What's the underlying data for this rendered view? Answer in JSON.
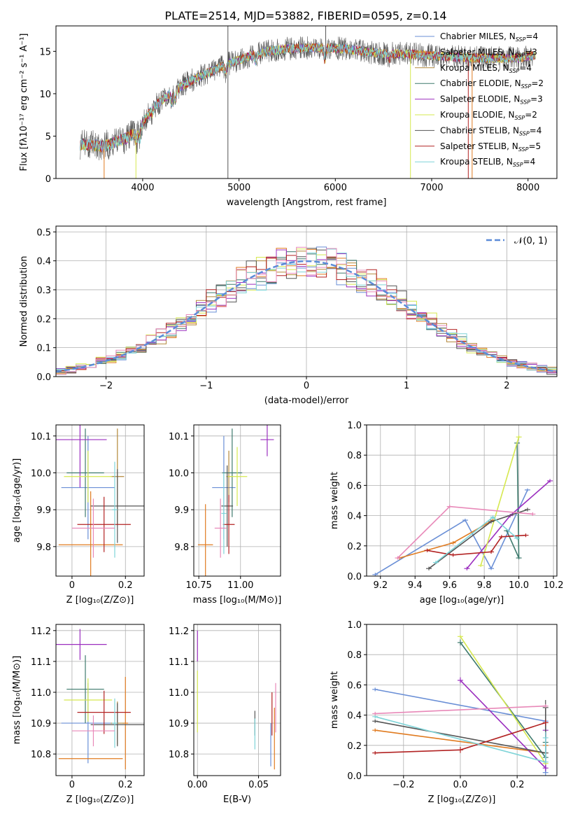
{
  "figure": {
    "title": "PLATE=2514, MJD=53882, FIBERID=0595, z=0.14"
  },
  "colors": {
    "series": [
      "#6a8fd6",
      "#e07b20",
      "#b3883a",
      "#3e7a6d",
      "#9b2fbf",
      "#d6e84f",
      "#555555",
      "#b22222",
      "#7fd4d8"
    ],
    "pink": "#e888b8",
    "grid": "#b0b0b0",
    "axis": "#000000"
  },
  "series_labels": [
    {
      "imf": "Chabrier",
      "lib": "MILES",
      "n": "4"
    },
    {
      "imf": "Salpeter",
      "lib": "MILES",
      "n": "3"
    },
    {
      "imf": "Kroupa",
      "lib": "MILES",
      "n": "4"
    },
    {
      "imf": "Chabrier",
      "lib": "ELODIE",
      "n": "2"
    },
    {
      "imf": "Salpeter",
      "lib": "ELODIE",
      "n": "3"
    },
    {
      "imf": "Kroupa",
      "lib": "ELODIE",
      "n": "2"
    },
    {
      "imf": "Chabrier",
      "lib": "STELIB",
      "n": "4"
    },
    {
      "imf": "Salpeter",
      "lib": "STELIB",
      "n": "5"
    },
    {
      "imf": "Kroupa",
      "lib": "STELIB",
      "n": "4"
    }
  ],
  "chart_data": [
    {
      "id": "spectrum",
      "type": "line",
      "xlabel": "wavelength [Angstrom, rest frame]",
      "ylabel": "Flux [fλ10⁻¹⁷ erg cm⁻² s⁻¹ A⁻¹]",
      "xlim": [
        3100,
        8300
      ],
      "ylim": [
        0,
        18
      ],
      "xticks": [
        4000,
        5000,
        6000,
        7000,
        8000
      ],
      "yticks": [
        0,
        5,
        10,
        15
      ],
      "grid": false,
      "legend": "right",
      "continuum": {
        "x": [
          3350,
          3600,
          3800,
          3950,
          4100,
          4300,
          4500,
          4700,
          4900,
          5100,
          5300,
          5500,
          5700,
          5900,
          6100,
          6300,
          6500,
          6700,
          6900,
          7100,
          7300,
          7500,
          7700,
          7900,
          8050
        ],
        "y": [
          4.0,
          3.8,
          4.6,
          5.6,
          8.3,
          10.2,
          11.5,
          12.6,
          13.6,
          14.4,
          15.0,
          15.3,
          15.4,
          15.4,
          15.3,
          15.0,
          14.7,
          14.7,
          14.6,
          14.4,
          14.3,
          14.2,
          14.2,
          14.2,
          14.5
        ]
      },
      "features": [
        {
          "x": 3934,
          "y": 4.4
        },
        {
          "x": 3969,
          "y": 4.6
        },
        {
          "x": 4102,
          "y": 7.6
        },
        {
          "x": 4304,
          "y": 8.9
        },
        {
          "x": 4340,
          "y": 9.2
        },
        {
          "x": 4861,
          "y": 12.5
        },
        {
          "x": 5175,
          "y": 13.6
        },
        {
          "x": 5890,
          "y": 14.0
        },
        {
          "x": 6563,
          "y": 14.1
        }
      ],
      "spikes": [
        {
          "x": 4885,
          "y0": 0,
          "y1": 18,
          "series": 6
        },
        {
          "x": 3930,
          "y0": 0,
          "y1": 5,
          "series": 5
        },
        {
          "x": 3600,
          "y0": 0,
          "y1": 3.5,
          "series": 1
        },
        {
          "x": 6780,
          "y0": 0,
          "y1": 14.5,
          "series": 5
        },
        {
          "x": 7420,
          "y0": 0,
          "y1": 14.3,
          "series": 1
        },
        {
          "x": 7380,
          "y0": 0,
          "y1": 14.0,
          "series": 7
        },
        {
          "x": 5900,
          "y0": 14.0,
          "y1": 18,
          "series": 6
        }
      ]
    },
    {
      "id": "residuals",
      "type": "bar",
      "xlabel": "(data-model)/error",
      "ylabel": "Normed distribution",
      "xlim": [
        -2.5,
        2.5
      ],
      "ylim": [
        0,
        0.52
      ],
      "xticks": [
        -2,
        -1,
        0,
        1,
        2
      ],
      "yticks": [
        0.0,
        0.1,
        0.2,
        0.3,
        0.4,
        0.5
      ],
      "grid": true,
      "bin_edges_range": [
        -2.5,
        2.5
      ],
      "nbins": 50,
      "gaussian_label": "𝒩(0, 1)",
      "legend": "top-right"
    },
    {
      "id": "age_vs_Z",
      "type": "scatter",
      "xlabel": "Z [log₁₀(Z/Z⊙)]",
      "ylabel": "age  [log₁₀(age/yr)]",
      "xlim": [
        -0.06,
        0.27
      ],
      "ylim": [
        9.72,
        10.13
      ],
      "xticks": [
        0.0,
        0.2
      ],
      "yticks": [
        9.8,
        9.9,
        10.0,
        10.1
      ],
      "grid": true,
      "points": [
        {
          "x": 0.06,
          "xerr": 0.1,
          "y": 9.96,
          "yerr": 0.14,
          "series": 0
        },
        {
          "x": 0.07,
          "xerr": 0.12,
          "y": 9.805,
          "yerr": 0.145,
          "series": 1
        },
        {
          "x": 0.17,
          "xerr": 0.025,
          "y": 9.99,
          "yerr": 0.13,
          "series": 2
        },
        {
          "x": 0.05,
          "xerr": 0.07,
          "y": 10.0,
          "yerr": 0.12,
          "series": 3
        },
        {
          "x": 0.03,
          "xerr": 0.1,
          "y": 10.09,
          "yerr": 0.13,
          "series": 4
        },
        {
          "x": 0.06,
          "xerr": 0.09,
          "y": 9.99,
          "yerr": 0.07,
          "series": 5
        },
        {
          "x": 0.17,
          "xerr": 0.1,
          "y": 9.91,
          "yerr": 0.1,
          "series": 6
        },
        {
          "x": 0.12,
          "xerr": 0.1,
          "y": 9.86,
          "yerr": 0.075,
          "series": 7
        },
        {
          "x": 0.16,
          "xerr": 0.01,
          "y": 9.9,
          "yerr": 0.13,
          "series": 8
        },
        {
          "x": 0.08,
          "xerr": 0.08,
          "y": 9.85,
          "yerr": 0.08,
          "series": 9
        }
      ]
    },
    {
      "id": "age_vs_mass",
      "type": "scatter",
      "xlabel": "mass [log₁₀(M/M⊙)]",
      "ylabel": "",
      "xlim": [
        10.72,
        11.24
      ],
      "ylim": [
        9.72,
        10.13
      ],
      "xticks": [
        10.75,
        11.0
      ],
      "yticks": [
        9.8,
        9.9,
        10.0,
        10.1
      ],
      "grid": true,
      "points": [
        {
          "x": 10.9,
          "xerr": 0.07,
          "y": 9.96,
          "yerr": 0.14,
          "series": 0
        },
        {
          "x": 10.79,
          "xerr": 0.045,
          "y": 9.805,
          "yerr": 0.11,
          "series": 1
        },
        {
          "x": 10.93,
          "xerr": 0.015,
          "y": 9.99,
          "yerr": 0.07,
          "series": 2
        },
        {
          "x": 10.95,
          "xerr": 0.06,
          "y": 10.0,
          "yerr": 0.12,
          "series": 3
        },
        {
          "x": 11.16,
          "xerr": 0.04,
          "y": 10.09,
          "yerr": 0.045,
          "series": 4
        },
        {
          "x": 10.98,
          "xerr": 0.06,
          "y": 9.99,
          "yerr": 0.08,
          "series": 5
        },
        {
          "x": 10.92,
          "xerr": 0.035,
          "y": 9.91,
          "yerr": 0.11,
          "series": 6
        },
        {
          "x": 10.93,
          "xerr": 0.035,
          "y": 9.86,
          "yerr": 0.08,
          "series": 7
        },
        {
          "x": 10.9,
          "xerr": 0.015,
          "y": 9.89,
          "yerr": 0.11,
          "series": 8
        },
        {
          "x": 10.88,
          "xerr": 0.035,
          "y": 9.85,
          "yerr": 0.08,
          "series": 9
        }
      ]
    },
    {
      "id": "weight_vs_age",
      "type": "line",
      "xlabel": "age  [log₁₀(age/yr)]",
      "ylabel": "mass weight",
      "xlim": [
        9.12,
        10.22
      ],
      "ylim": [
        0,
        1.0
      ],
      "xticks": [
        9.2,
        9.4,
        9.6,
        9.8,
        10.0,
        10.2
      ],
      "yticks": [
        0.0,
        0.2,
        0.4,
        0.6,
        0.8,
        1.0
      ],
      "grid": true,
      "series": [
        {
          "series": 0,
          "x": [
            9.17,
            9.69,
            9.84,
            10.05
          ],
          "y": [
            0.01,
            0.37,
            0.05,
            0.57
          ],
          "err": [
            0,
            0.01,
            0.01,
            0.01
          ]
        },
        {
          "series": 1,
          "x": [
            9.31,
            9.62,
            9.85
          ],
          "y": [
            0.12,
            0.22,
            0.37
          ],
          "err": [
            0,
            0,
            0
          ]
        },
        {
          "series": 3,
          "x": [
            9.99,
            10.0,
            9.93
          ],
          "y": [
            0.88,
            0.12,
            0.3
          ],
          "err": [
            0.01,
            0.01,
            0.01
          ]
        },
        {
          "series": 4,
          "x": [
            9.7,
            9.95,
            10.18
          ],
          "y": [
            0.05,
            0.4,
            0.63
          ],
          "err": [
            0,
            0,
            0
          ]
        },
        {
          "series": 5,
          "x": [
            9.78,
            10.0
          ],
          "y": [
            0.07,
            0.92
          ],
          "err": [
            0.01,
            0.01
          ]
        },
        {
          "series": 6,
          "x": [
            9.48,
            9.84,
            10.05
          ],
          "y": [
            0.05,
            0.36,
            0.44
          ],
          "err": [
            0,
            0,
            0
          ]
        },
        {
          "series": 7,
          "x": [
            9.47,
            9.62,
            9.84,
            9.9,
            10.04
          ],
          "y": [
            0.17,
            0.14,
            0.16,
            0.26,
            0.27
          ],
          "err": [
            0,
            0,
            0,
            0,
            0
          ]
        },
        {
          "series": 8,
          "x": [
            9.52,
            9.85,
            9.99
          ],
          "y": [
            0.09,
            0.39,
            0.25
          ],
          "err": [
            0,
            0,
            0
          ]
        },
        {
          "series": 9,
          "x": [
            9.3,
            9.6,
            10.08
          ],
          "y": [
            0.12,
            0.46,
            0.41
          ],
          "err": [
            0,
            0,
            0
          ]
        }
      ]
    },
    {
      "id": "mass_vs_Z",
      "type": "scatter",
      "xlabel": "Z [log₁₀(Z/Z⊙)]",
      "ylabel": "mass [log₁₀(M/M⊙)]",
      "xlim": [
        -0.06,
        0.27
      ],
      "ylim": [
        10.73,
        11.22
      ],
      "xticks": [
        0.0,
        0.2
      ],
      "yticks": [
        10.8,
        10.9,
        11.0,
        11.1,
        11.2
      ],
      "grid": true,
      "points": [
        {
          "x": 0.06,
          "xerr": 0.1,
          "y": 10.9,
          "yerr": 0.13,
          "series": 0
        },
        {
          "x": 0.07,
          "xerr": 0.12,
          "y": 10.785,
          "yerr": 0.0,
          "series": 1
        },
        {
          "x": 0.2,
          "xerr": 0.01,
          "y": 10.9,
          "yerr": 0.15,
          "series": 1
        },
        {
          "x": 0.17,
          "xerr": 0.025,
          "y": 10.9,
          "yerr": 0.07,
          "series": 2
        },
        {
          "x": 0.05,
          "xerr": 0.07,
          "y": 11.01,
          "yerr": 0.11,
          "series": 3
        },
        {
          "x": 0.03,
          "xerr": 0.1,
          "y": 11.155,
          "yerr": 0.05,
          "series": 4
        },
        {
          "x": 0.06,
          "xerr": 0.09,
          "y": 10.975,
          "yerr": 0.07,
          "series": 5
        },
        {
          "x": 0.17,
          "xerr": 0.1,
          "y": 10.895,
          "yerr": 0.07,
          "series": 6
        },
        {
          "x": 0.12,
          "xerr": 0.1,
          "y": 10.935,
          "yerr": 0.07,
          "series": 7
        },
        {
          "x": 0.16,
          "xerr": 0.01,
          "y": 10.9,
          "yerr": 0.08,
          "series": 8
        },
        {
          "x": 0.08,
          "xerr": 0.08,
          "y": 10.875,
          "yerr": 0.05,
          "series": 9
        }
      ]
    },
    {
      "id": "mass_vs_EBV",
      "type": "scatter",
      "xlabel": "E(B-V)",
      "ylabel": "",
      "xlim": [
        -0.003,
        0.068
      ],
      "ylim": [
        10.73,
        11.22
      ],
      "xticks": [
        0.0,
        0.05
      ],
      "yticks": [
        10.8,
        10.9,
        11.0,
        11.1,
        11.2
      ],
      "grid": true,
      "points": [
        {
          "x": 0.0,
          "xerr": 0,
          "y": 10.97,
          "yerr": 0.1,
          "series": 5
        },
        {
          "x": 0.0,
          "xerr": 0,
          "y": 11.15,
          "yerr": 0.05,
          "series": 4
        },
        {
          "x": 0.047,
          "xerr": 0,
          "y": 10.9,
          "yerr": 0.04,
          "series": 6
        },
        {
          "x": 0.047,
          "xerr": 0,
          "y": 10.865,
          "yerr": 0.05,
          "series": 8
        },
        {
          "x": 0.06,
          "xerr": 0,
          "y": 10.83,
          "yerr": 0.07,
          "series": 0
        },
        {
          "x": 0.061,
          "xerr": 0,
          "y": 10.93,
          "yerr": 0.07,
          "series": 7
        },
        {
          "x": 0.063,
          "xerr": 0,
          "y": 10.85,
          "yerr": 0.1,
          "series": 1
        },
        {
          "x": 0.064,
          "xerr": 0,
          "y": 10.95,
          "yerr": 0.08,
          "series": 9
        }
      ]
    },
    {
      "id": "weight_vs_Z",
      "type": "line",
      "xlabel": "Z [log₁₀(Z/Z⊙)]",
      "ylabel": "mass weight",
      "xlim": [
        -0.33,
        0.34
      ],
      "ylim": [
        0,
        1.0
      ],
      "xticks": [
        -0.2,
        0.0,
        0.2
      ],
      "yticks": [
        0.0,
        0.2,
        0.4,
        0.6,
        0.8,
        1.0
      ],
      "grid": true,
      "series": [
        {
          "series": 0,
          "x": [
            -0.3,
            0.3,
            0.3
          ],
          "y": [
            0.57,
            0.36,
            0.02
          ],
          "err": [
            0,
            0,
            0.02
          ]
        },
        {
          "series": 1,
          "x": [
            -0.3,
            0.3,
            0.3
          ],
          "y": [
            0.3,
            0.15,
            0.2
          ],
          "err": [
            0,
            0,
            0
          ]
        },
        {
          "series": 3,
          "x": [
            0.0,
            0.3,
            0.3
          ],
          "y": [
            0.88,
            0.12,
            0.22
          ],
          "err": [
            0.02,
            0.02,
            0.05
          ]
        },
        {
          "series": 4,
          "x": [
            0.0,
            0.3,
            0.3
          ],
          "y": [
            0.63,
            0.05,
            0.3
          ],
          "err": [
            0.02,
            0.02,
            0.02
          ]
        },
        {
          "series": 5,
          "x": [
            0.0,
            0.3
          ],
          "y": [
            0.92,
            0.08
          ],
          "err": [
            0.01,
            0.01
          ]
        },
        {
          "series": 6,
          "x": [
            -0.3,
            0.3,
            0.3
          ],
          "y": [
            0.36,
            0.15,
            0.45
          ],
          "err": [
            0,
            0.05,
            0.05
          ]
        },
        {
          "series": 7,
          "x": [
            -0.3,
            0.0,
            0.3
          ],
          "y": [
            0.15,
            0.17,
            0.35
          ],
          "err": [
            0,
            0.02,
            0.02
          ]
        },
        {
          "series": 8,
          "x": [
            -0.3,
            0.3,
            0.3
          ],
          "y": [
            0.39,
            0.09,
            0.25
          ],
          "err": [
            0,
            0,
            0.04
          ]
        },
        {
          "series": 9,
          "x": [
            -0.3,
            0.3
          ],
          "y": [
            0.41,
            0.46
          ],
          "err": [
            0,
            0
          ]
        }
      ]
    }
  ]
}
